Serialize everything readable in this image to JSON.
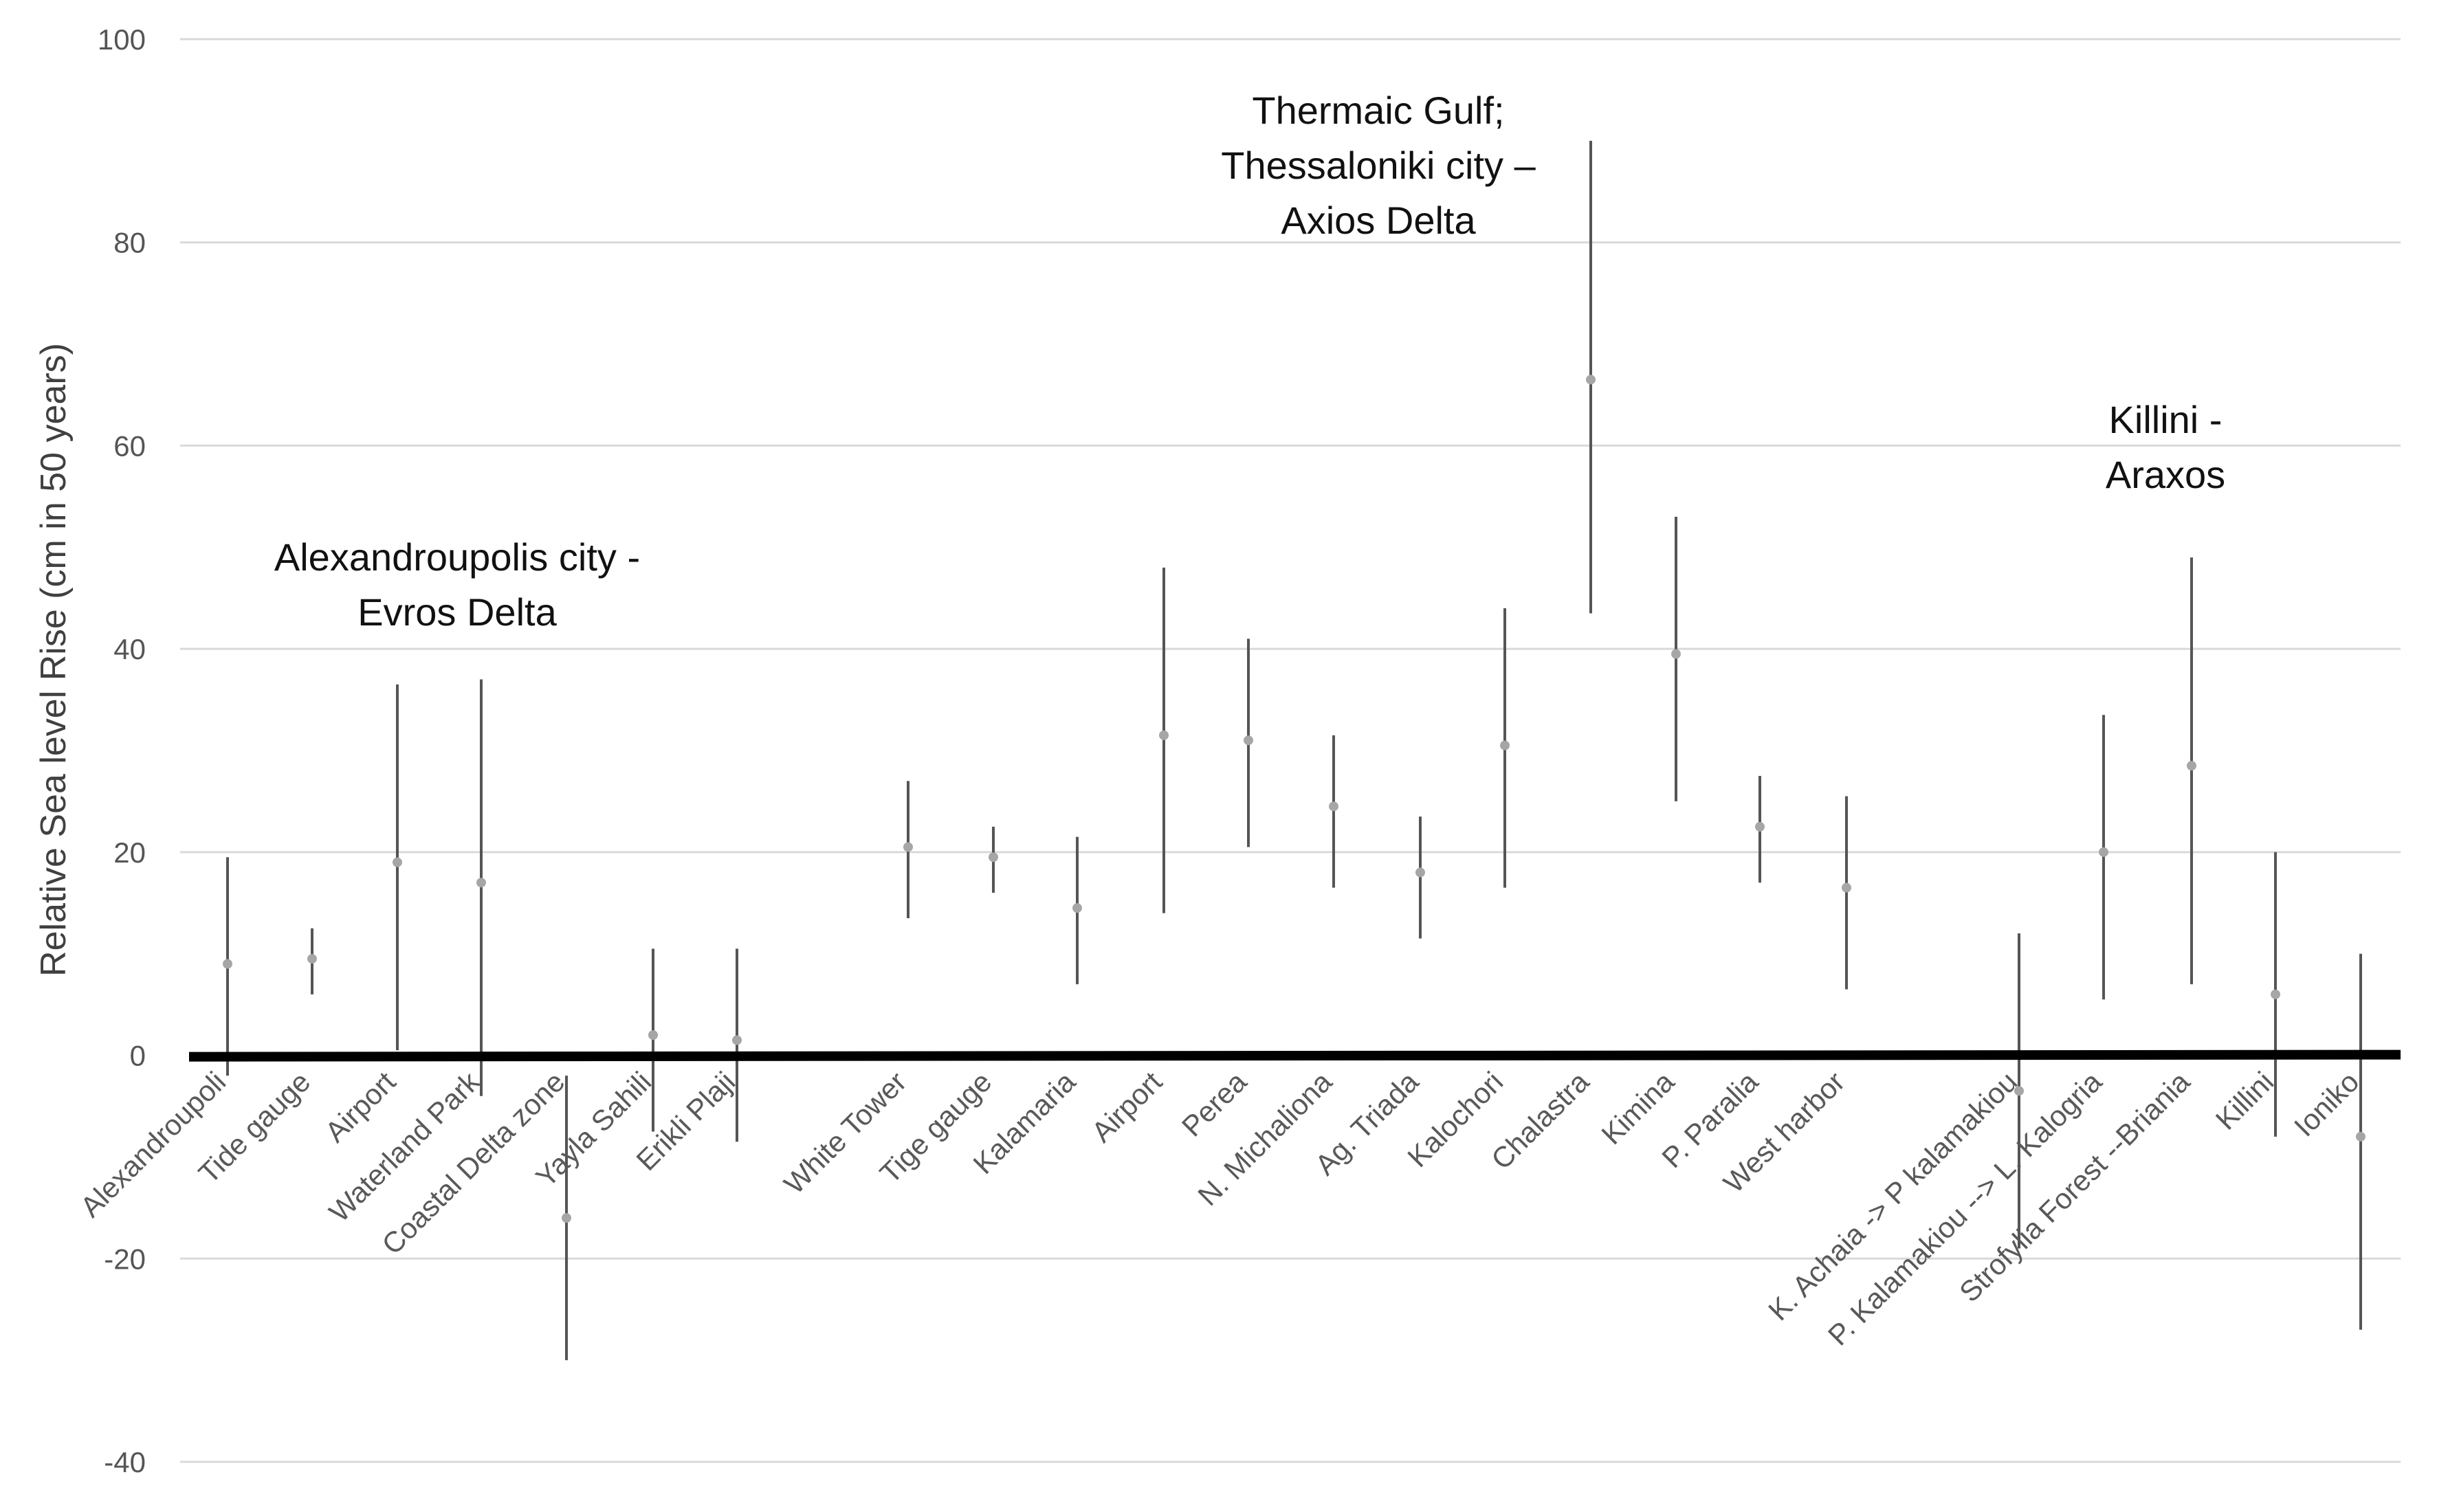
{
  "chart_data": {
    "type": "scatter",
    "ylabel": "Relative Sea level Rise (cm in 50 years)",
    "ylim": [
      -40,
      100
    ],
    "yticks": [
      -40,
      -20,
      0,
      20,
      40,
      60,
      80,
      100
    ],
    "grid": true,
    "points": [
      {
        "label": "Alexandroupoli",
        "value": 9,
        "low": -2,
        "high": 19.5
      },
      {
        "label": "Tide gauge",
        "value": 9.5,
        "low": 6,
        "high": 12.5
      },
      {
        "label": "Airport",
        "value": 19,
        "low": 0.5,
        "high": 36.5
      },
      {
        "label": "Waterland Park",
        "value": 17,
        "low": -4,
        "high": 37
      },
      {
        "label": "Coastal Delta zone",
        "value": -16,
        "low": -30,
        "high": -2
      },
      {
        "label": "Yayla Sahili",
        "value": 2,
        "low": -7.5,
        "high": 10.5
      },
      {
        "label": "Erikli Plaji",
        "value": 1.5,
        "low": -8.5,
        "high": 10.5
      },
      {
        "label": "White Tower",
        "value": 20.5,
        "low": 13.5,
        "high": 27
      },
      {
        "label": "Tige gauge",
        "value": 19.5,
        "low": 16,
        "high": 22.5
      },
      {
        "label": "Kalamaria",
        "value": 14.5,
        "low": 7,
        "high": 21.5
      },
      {
        "label": "Airport",
        "value": 31.5,
        "low": 14,
        "high": 48
      },
      {
        "label": "Perea",
        "value": 31,
        "low": 20.5,
        "high": 41
      },
      {
        "label": "N. Michaliona",
        "value": 24.5,
        "low": 16.5,
        "high": 31.5
      },
      {
        "label": "Ag. Triada",
        "value": 18,
        "low": 11.5,
        "high": 23.5
      },
      {
        "label": "Kalochori",
        "value": 30.5,
        "low": 16.5,
        "high": 44
      },
      {
        "label": "Chalastra",
        "value": 66.5,
        "low": 43.5,
        "high": 90
      },
      {
        "label": "Kimina",
        "value": 39.5,
        "low": 25,
        "high": 53
      },
      {
        "label": "P. Paralia",
        "value": 22.5,
        "low": 17,
        "high": 27.5
      },
      {
        "label": "West harbor",
        "value": 16.5,
        "low": 6.5,
        "high": 25.5
      },
      {
        "label": "K. Achaia -> P kalamakiou",
        "value": -3.5,
        "low": -19,
        "high": 12
      },
      {
        "label": "P. Kalamakiou --> L. Kalogria",
        "value": 20,
        "low": 5.5,
        "high": 33.5
      },
      {
        "label": "Strofylia Forest --Briania",
        "value": 28.5,
        "low": 7,
        "high": 49
      },
      {
        "label": "Killini",
        "value": 6,
        "low": -8,
        "high": 20
      },
      {
        "label": "Ioniko",
        "value": -8,
        "low": -27,
        "high": 10
      }
    ],
    "annotations": [
      {
        "lines": [
          "Alexandroupolis city -",
          "Evros Delta"
        ]
      },
      {
        "lines": [
          "Thermaic Gulf;",
          "Thessaloniki city –",
          "Axios Delta"
        ]
      },
      {
        "lines": [
          "Killini -",
          "Araxos"
        ]
      }
    ]
  }
}
